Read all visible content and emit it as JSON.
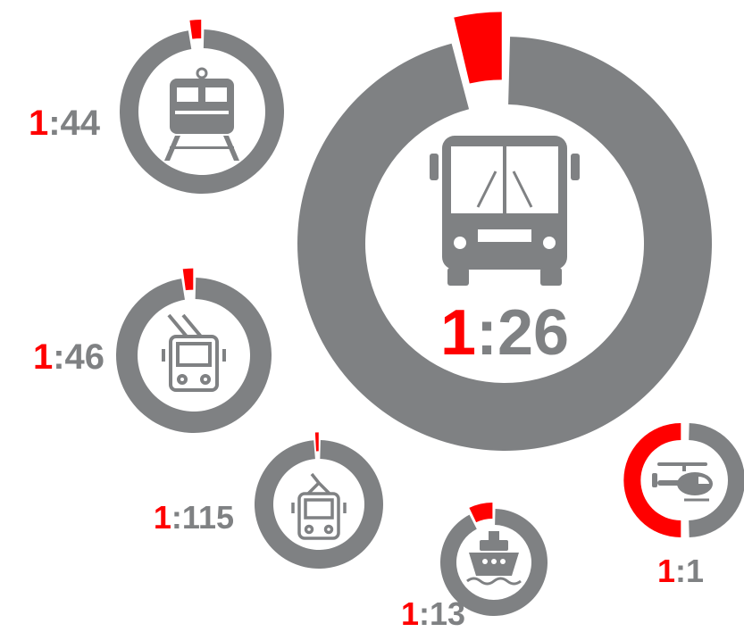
{
  "chart_data": [
    {
      "type": "donut",
      "values": [
        1,
        44
      ],
      "value_labels": [
        "1",
        ":44"
      ],
      "colors": [
        "#ff0000",
        "#7f8183"
      ]
    },
    {
      "type": "donut",
      "values": [
        1,
        26
      ],
      "value_labels": [
        "1",
        ":26"
      ],
      "colors": [
        "#ff0000",
        "#7f8183"
      ]
    },
    {
      "type": "donut",
      "values": [
        1,
        46
      ],
      "value_labels": [
        "1",
        ":46"
      ],
      "colors": [
        "#ff0000",
        "#7f8183"
      ]
    },
    {
      "type": "donut",
      "values": [
        1,
        115
      ],
      "value_labels": [
        "1",
        ":115"
      ],
      "colors": [
        "#ff0000",
        "#7f8183"
      ]
    },
    {
      "type": "donut",
      "values": [
        1,
        13
      ],
      "value_labels": [
        "1",
        ":13"
      ],
      "colors": [
        "#ff0000",
        "#7f8183"
      ]
    },
    {
      "type": "donut",
      "values": [
        1,
        1
      ],
      "value_labels": [
        "1",
        ":1"
      ],
      "colors": [
        "#ff0000",
        "#7f8183"
      ]
    }
  ]
}
